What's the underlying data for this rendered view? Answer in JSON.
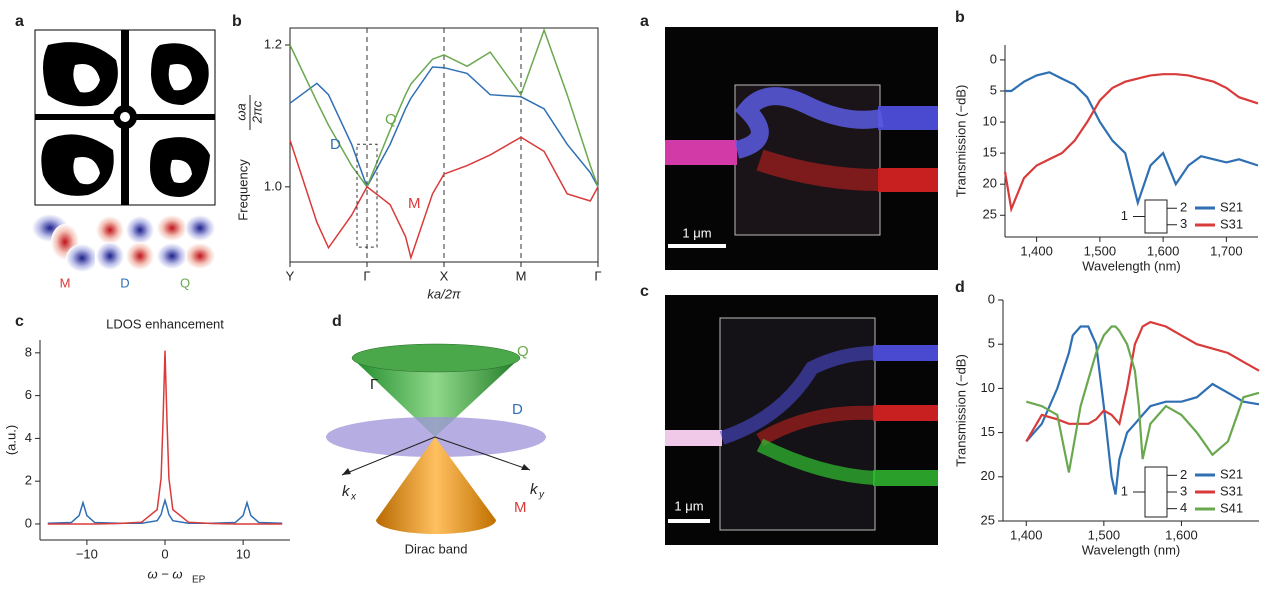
{
  "chart_data": [
    {
      "type": "line",
      "panel": "b",
      "ylabel": "Frequency",
      "ylabel_frac": [
        "ωa",
        "2πc"
      ],
      "xlabel": "ka/2π",
      "xlim": [
        0,
        4
      ],
      "ylim": [
        0.894,
        1.224
      ],
      "xticks": [
        {
          "value": 0,
          "label": "Y"
        },
        {
          "value": 1,
          "label": "Γ"
        },
        {
          "value": 2,
          "label": "X"
        },
        {
          "value": 3,
          "label": "M"
        },
        {
          "value": 4,
          "label": "Γ"
        }
      ],
      "yticks": [
        {
          "value": 1,
          "label": "1.0"
        },
        {
          "value": 1.2,
          "label": "1.2"
        }
      ],
      "x": [
        0,
        0.35,
        0.5,
        0.8,
        1,
        1.3,
        1.5,
        1.57,
        1.85,
        2,
        2.3,
        2.6,
        3,
        3.3,
        3.6,
        3.9,
        4
      ],
      "series": [
        {
          "name": "D",
          "color": "#2f6fb3",
          "values": [
            1.118,
            1.146,
            1.13,
            1.06,
            1.0,
            1.06,
            1.11,
            1.125,
            1.169,
            1.168,
            1.16,
            1.13,
            1.127,
            1.11,
            1.06,
            1.02,
            1.0
          ]
        },
        {
          "name": "Q",
          "color": "#6aa84f",
          "values": [
            1.2,
            1.12,
            1.087,
            1.03,
            1.0,
            1.08,
            1.13,
            1.145,
            1.18,
            1.186,
            1.17,
            1.19,
            1.13,
            1.221,
            1.13,
            1.03,
            1.0
          ]
        },
        {
          "name": "M",
          "color": "#d93a3a",
          "values": [
            1.066,
            0.95,
            0.914,
            0.96,
            1.0,
            0.975,
            0.93,
            0.9,
            0.99,
            1.018,
            1.03,
            1.045,
            1.07,
            1.05,
            0.99,
            0.98,
            1.0
          ]
        }
      ]
    },
    {
      "type": "line",
      "panel": "c",
      "title": "LDOS enhancement",
      "ylabel": "(a.u.)",
      "xlabel": "ω − ω",
      "xlabel_sub": "EP",
      "xlim": [
        -16,
        16
      ],
      "ylim": [
        -0.75,
        8.6
      ],
      "xticks": [
        {
          "value": -10,
          "label": "−10"
        },
        0,
        10
      ],
      "yticks": [
        0,
        2,
        4,
        6,
        8
      ],
      "x": [
        -15,
        -12,
        -11,
        -10.5,
        -10,
        -9,
        -6,
        -3,
        -1,
        -0.5,
        -0.25,
        0,
        0.25,
        0.5,
        1,
        3,
        6,
        9,
        10,
        10.5,
        11,
        12,
        15
      ],
      "series": [
        {
          "name": "D",
          "color": "#2f6fb3",
          "values": [
            0.03,
            0.07,
            0.39,
            1.0,
            0.39,
            0.07,
            0.03,
            0.03,
            0.15,
            0.44,
            0.79,
            1.1,
            0.79,
            0.44,
            0.15,
            0.03,
            0.03,
            0.07,
            0.39,
            1.0,
            0.39,
            0.07,
            0.03
          ]
        },
        {
          "name": "M",
          "color": "#d93a3a",
          "values": [
            0,
            0,
            0,
            0,
            0,
            0,
            0.02,
            0.08,
            0.67,
            2.14,
            4.78,
            8.1,
            4.78,
            2.14,
            0.67,
            0.08,
            0.02,
            0,
            0,
            0,
            0,
            0,
            0
          ]
        }
      ]
    },
    {
      "type": "line",
      "panel": "b",
      "ylabel": "Transmission (−dB)",
      "xlabel": "Wavelength (nm)",
      "ports": [
        "1",
        "2",
        "3"
      ],
      "xlim": [
        1350,
        1750
      ],
      "ylim": [
        28.5,
        -2.4
      ],
      "xticks": [
        {
          "value": 1400,
          "label": "1,400"
        },
        {
          "value": 1500,
          "label": "1,500"
        },
        {
          "value": 1600,
          "label": "1,600"
        },
        {
          "value": 1700,
          "label": "1,700"
        }
      ],
      "yticks": [
        0,
        5,
        10,
        15,
        20,
        25
      ],
      "x": [
        1350,
        1360,
        1380,
        1400,
        1420,
        1440,
        1460,
        1480,
        1500,
        1520,
        1540,
        1560,
        1580,
        1600,
        1620,
        1640,
        1660,
        1680,
        1700,
        1720,
        1750
      ],
      "series": [
        {
          "name": "S21",
          "color": "#2f6fb3",
          "values": [
            5,
            5,
            3.5,
            2.5,
            2,
            3,
            4,
            6,
            10,
            13,
            15,
            23,
            17,
            15,
            20,
            17,
            15.5,
            16,
            16.5,
            16,
            17
          ]
        },
        {
          "name": "S31",
          "color": "#d93a3a",
          "values": [
            18,
            24,
            19,
            17,
            16,
            15,
            13,
            10,
            6.5,
            4.5,
            3.5,
            3,
            2.5,
            2.3,
            2.3,
            2.5,
            3,
            3.5,
            4.5,
            6,
            7
          ]
        }
      ]
    },
    {
      "type": "line",
      "panel": "d",
      "ylabel": "Transmission (−dB)",
      "xlabel": "Wavelength (nm)",
      "ports": [
        "1",
        "2",
        "3",
        "4"
      ],
      "xlim": [
        1370,
        1700
      ],
      "ylim": [
        25,
        0
      ],
      "xticks": [
        {
          "value": 1400,
          "label": "1,400"
        },
        {
          "value": 1500,
          "label": "1,500"
        },
        {
          "value": 1600,
          "label": "1,600"
        }
      ],
      "yticks": [
        0,
        5,
        10,
        15,
        20,
        25
      ],
      "x": [
        1400,
        1420,
        1440,
        1455,
        1460,
        1470,
        1480,
        1490,
        1500,
        1510,
        1515,
        1520,
        1530,
        1540,
        1545,
        1550,
        1560,
        1580,
        1600,
        1620,
        1640,
        1660,
        1680,
        1700
      ],
      "series": [
        {
          "name": "S21",
          "color": "#2f6fb3",
          "values": [
            16,
            14,
            10,
            6,
            4,
            3,
            3,
            5,
            12,
            20,
            22,
            18,
            15,
            14,
            13.5,
            13,
            12,
            11.5,
            11.5,
            11,
            9.5,
            10.5,
            11.5,
            11.8
          ]
        },
        {
          "name": "S31",
          "color": "#d93a3a",
          "values": [
            16,
            13,
            13.5,
            14,
            14,
            14,
            14,
            13.5,
            12.5,
            13,
            13.5,
            14,
            10,
            5,
            4,
            3,
            2.5,
            3,
            4,
            5,
            5.5,
            6,
            7,
            8
          ]
        },
        {
          "name": "S41",
          "color": "#6aa84f",
          "values": [
            11.5,
            12,
            13,
            19.5,
            17,
            12,
            9,
            6,
            4,
            3,
            3,
            3.5,
            5,
            8,
            12,
            18,
            14,
            12,
            13,
            15,
            17.5,
            16,
            11,
            10.5
          ]
        }
      ]
    }
  ],
  "pattern": {
    "panel": "a",
    "modes": [
      "M",
      "D",
      "Q"
    ]
  },
  "cone": {
    "panel": "d",
    "labels": [
      "Q",
      "Γ",
      "D",
      "M"
    ],
    "axes": [
      {
        "main": "k",
        "sub": "x"
      },
      {
        "main": "k",
        "sub": "y"
      }
    ],
    "caption": "Dirac band"
  },
  "micrographs": [
    {
      "panel": "a",
      "scale": "1 μm"
    },
    {
      "panel": "c",
      "scale": "1 μm"
    }
  ]
}
